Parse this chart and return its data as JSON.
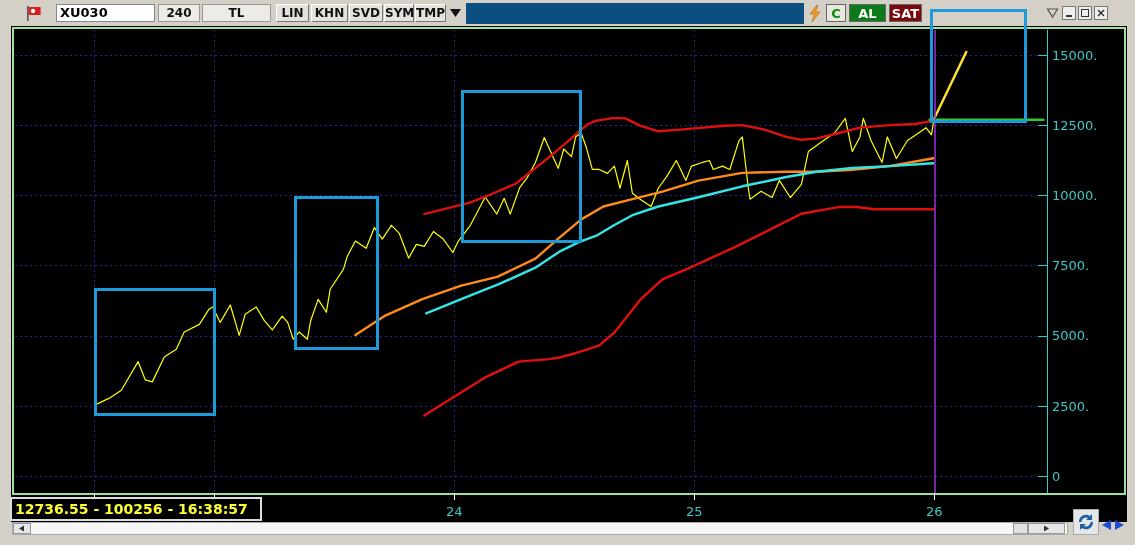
{
  "chart_data": {
    "type": "line",
    "title": "XU030",
    "annotations": [
      "12736.55 - 100256 - 16:38:57",
      "240",
      "TL",
      "LIN",
      "KHN",
      "SVD",
      "SYM",
      "TMP",
      "C",
      "AL",
      "SAT"
    ],
    "xlim": [
      2022.17,
      2026.79
    ],
    "xticks": [
      {
        "value": 2022.5,
        "label": null
      },
      {
        "value": 2023,
        "label": null
      },
      {
        "value": 2024,
        "label": "24"
      },
      {
        "value": 2025,
        "label": "25"
      },
      {
        "value": 2026,
        "label": "26"
      }
    ],
    "ylim": [
      -600,
      15900
    ],
    "yticks": [
      0,
      {
        "value": 2500,
        "label": "2500."
      },
      {
        "value": 5000,
        "label": "5000."
      },
      {
        "value": 7500,
        "label": "7500."
      },
      {
        "value": 10000,
        "label": "10000."
      },
      {
        "value": 12500,
        "label": "12500."
      },
      {
        "value": 15000,
        "label": "15000."
      }
    ],
    "grid": true,
    "marker": "none",
    "ref_lines": [
      {
        "axis": "x",
        "value": 2026,
        "color": "#9b30d0"
      }
    ],
    "series": [
      {
        "color": "#ffff00",
        "x": [
          2022.504,
          2022.563,
          2022.613,
          2022.683,
          2022.713,
          2022.742,
          2022.792,
          2022.842,
          2022.875,
          2022.938,
          2022.979,
          2022.994,
          2023.025,
          2023.067,
          2023.104,
          2023.129,
          2023.175,
          2023.208,
          2023.242,
          2023.283,
          2023.306,
          2023.329,
          2023.354,
          2023.388,
          2023.402,
          2023.433,
          2023.467,
          2023.483,
          2023.538,
          2023.554,
          2023.588,
          2023.633,
          2023.667,
          2023.7,
          2023.738,
          2023.771,
          2023.81,
          2023.842,
          2023.875,
          2023.913,
          2023.954,
          2023.994,
          2024.017,
          2024.067,
          2024.129,
          2024.177,
          2024.208,
          2024.233,
          2024.273,
          2024.304,
          2024.338,
          2024.375,
          2024.4,
          2024.433,
          2024.456,
          2024.488,
          2024.506,
          2024.529,
          2024.55,
          2024.575,
          2024.604,
          2024.638,
          2024.667,
          2024.69,
          2024.721,
          2024.742,
          2024.774,
          2024.82,
          2024.85,
          2024.888,
          2024.925,
          2024.965,
          2024.988,
          2025.033,
          2025.063,
          2025.079,
          2025.117,
          2025.148,
          2025.186,
          2025.2,
          2025.225,
          2025.232,
          2025.278,
          2025.324,
          2025.354,
          2025.4,
          2025.446,
          2025.475,
          2025.538,
          2025.583,
          2025.629,
          2025.658,
          2025.69,
          2025.704,
          2025.736,
          2025.782,
          2025.804,
          2025.842,
          2025.888,
          2025.933,
          2025.965,
          2025.988,
          2025.996
        ],
        "values": [
          2540,
          2780,
          3060,
          4080,
          3430,
          3360,
          4250,
          4520,
          5140,
          5410,
          5960,
          6030,
          5480,
          6100,
          5020,
          5770,
          6030,
          5550,
          5210,
          5700,
          5480,
          4880,
          5140,
          4880,
          5550,
          6300,
          5840,
          6660,
          7370,
          7830,
          8380,
          8120,
          8860,
          8450,
          8940,
          8650,
          7770,
          8260,
          8190,
          8720,
          8450,
          7970,
          8380,
          8940,
          9950,
          9340,
          9900,
          9340,
          10290,
          10640,
          11180,
          12070,
          11590,
          10970,
          11660,
          11390,
          12100,
          12220,
          11720,
          10930,
          10930,
          10790,
          11050,
          10260,
          11250,
          10080,
          9870,
          9610,
          10260,
          10720,
          11250,
          10540,
          11050,
          11180,
          11250,
          10930,
          11050,
          10930,
          11960,
          12090,
          10260,
          9870,
          10150,
          9930,
          10540,
          9930,
          10400,
          11570,
          11960,
          12220,
          12750,
          11570,
          12090,
          12750,
          11960,
          11180,
          12090,
          11320,
          11960,
          12220,
          12420,
          12160,
          12610
        ]
      },
      {
        "color": "#e01010",
        "x": [
          2023.875,
          2023.986,
          2024.065,
          2024.146,
          2024.257,
          2024.337,
          2024.417,
          2024.528,
          2024.558,
          2024.592,
          2024.667,
          2024.713,
          2024.774,
          2024.85,
          2024.942,
          2025.125,
          2025.2,
          2025.292,
          2025.383,
          2025.446,
          2025.507,
          2025.599,
          2025.69,
          2025.813,
          2025.92,
          2025.996
        ],
        "values": [
          9340,
          9580,
          9750,
          10020,
          10430,
          10970,
          11520,
          12340,
          12550,
          12670,
          12770,
          12750,
          12490,
          12290,
          12350,
          12490,
          12510,
          12350,
          12090,
          11990,
          12030,
          12220,
          12420,
          12510,
          12550,
          12670
        ]
      },
      {
        "color": "#e01010",
        "x": [
          2023.875,
          2023.996,
          2024.125,
          2024.267,
          2024.396,
          2024.438,
          2024.508,
          2024.558,
          2024.604,
          2024.667,
          2024.775,
          2024.867,
          2024.971,
          2025.171,
          2025.325,
          2025.446,
          2025.6,
          2025.675,
          2025.75,
          2025.996
        ],
        "values": [
          2160,
          2810,
          3500,
          4080,
          4170,
          4230,
          4390,
          4530,
          4660,
          5120,
          6290,
          7010,
          7390,
          8170,
          8830,
          9350,
          9590,
          9590,
          9510,
          9510
        ]
      },
      {
        "color": "#ff8c1a",
        "x": [
          2023.588,
          2023.708,
          2023.867,
          2024.029,
          2024.179,
          2024.338,
          2024.438,
          2024.529,
          2024.621,
          2024.742,
          2024.867,
          2025.017,
          2025.2,
          2025.383,
          2025.508,
          2025.658,
          2025.813,
          2025.996
        ],
        "values": [
          5030,
          5700,
          6310,
          6790,
          7100,
          7750,
          8500,
          9150,
          9610,
          9870,
          10140,
          10530,
          10810,
          10850,
          10850,
          10920,
          11050,
          11330
        ]
      },
      {
        "color": "#33e6e6",
        "x": [
          2023.883,
          2024.029,
          2024.188,
          2024.338,
          2024.438,
          2024.521,
          2024.592,
          2024.667,
          2024.742,
          2024.85,
          2025.017,
          2025.2,
          2025.383,
          2025.508,
          2025.658,
          2025.813,
          2025.996
        ],
        "values": [
          5800,
          6310,
          6850,
          7430,
          8000,
          8350,
          8570,
          8950,
          9300,
          9610,
          9940,
          10330,
          10660,
          10850,
          10980,
          11050,
          11150
        ]
      },
      {
        "color": "#ffe033",
        "x": [
          2025.996,
          2026.133
        ],
        "values": [
          12680,
          15120
        ]
      },
      {
        "color": "#2ecc2e",
        "x": [
          2025.98,
          2026.454
        ],
        "values": [
          12700,
          12700
        ]
      }
    ]
  }
}
